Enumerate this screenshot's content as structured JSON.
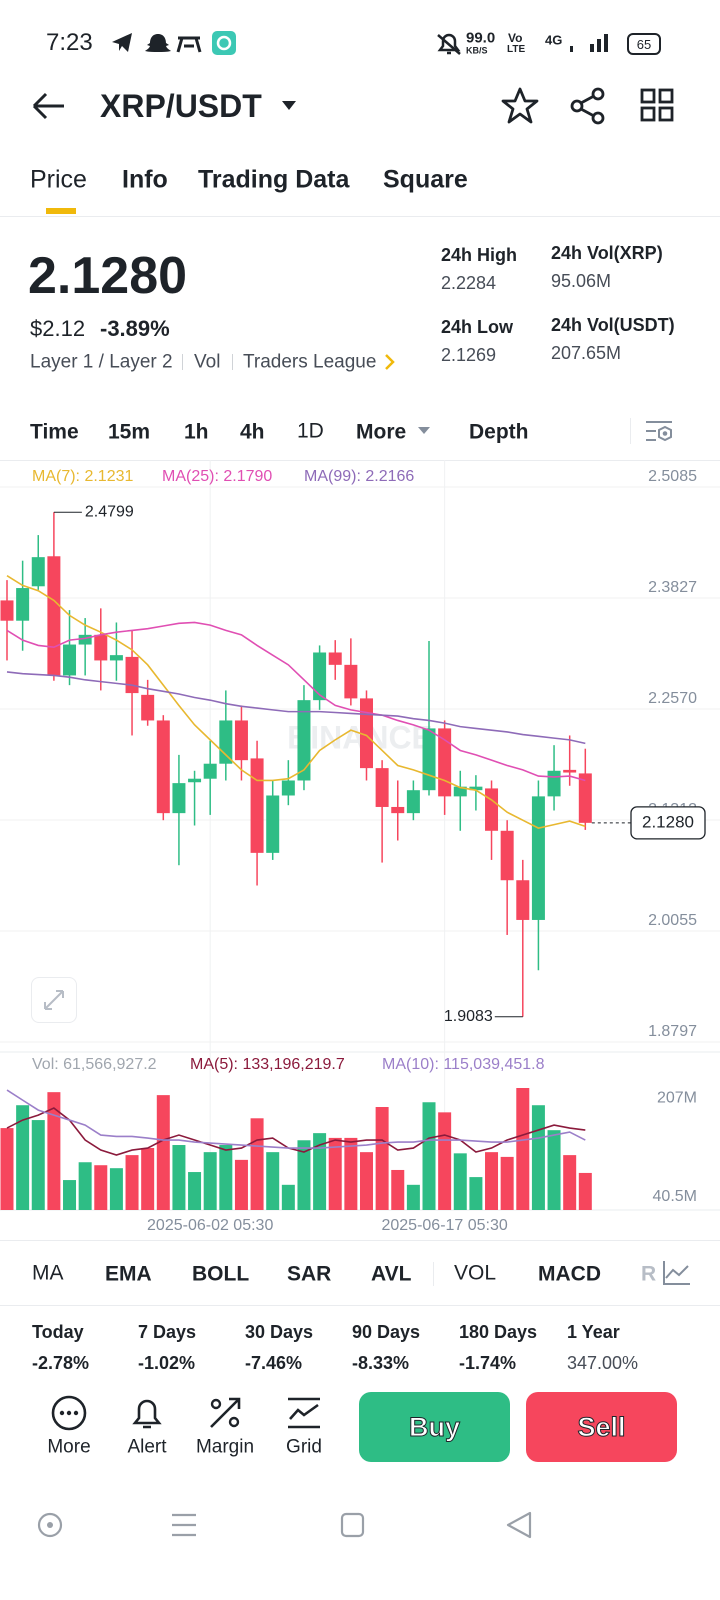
{
  "status_bar": {
    "time": "7:23",
    "speed": "99.0",
    "speed_unit": "KB/S",
    "volte_top": "Vo",
    "volte_bottom": "LTE",
    "network": "4G",
    "battery": "65"
  },
  "header": {
    "pair": "XRP/USDT"
  },
  "tabs": [
    "Price",
    "Info",
    "Trading Data",
    "Square"
  ],
  "price": {
    "last": "2.1280",
    "usd": "$2.12",
    "change": "-3.89%",
    "tags": [
      "Layer 1 / Layer 2",
      "Vol",
      "Traders League"
    ]
  },
  "stats": [
    {
      "label": "24h High",
      "value": "2.2284"
    },
    {
      "label": "24h Vol(XRP)",
      "value": "95.06M"
    },
    {
      "label": "24h Low",
      "value": "2.1269"
    },
    {
      "label": "24h Vol(USDT)",
      "value": "207.65M"
    }
  ],
  "intervals": [
    "Time",
    "15m",
    "1h",
    "4h",
    "1D",
    "More",
    "Depth"
  ],
  "chart_data": {
    "type": "candlestick",
    "watermark": "BINANCE",
    "categories": [
      null,
      null,
      null,
      null,
      null,
      null,
      null,
      null,
      null,
      null,
      null,
      null,
      null,
      "2025-06-02 05:30",
      null,
      null,
      null,
      null,
      null,
      null,
      null,
      null,
      null,
      null,
      null,
      null,
      null,
      null,
      "2025-06-17 05:30",
      null,
      null,
      null,
      null,
      null,
      null,
      null,
      null,
      null
    ],
    "open": [
      2.38,
      2.357,
      2.396,
      2.43,
      2.295,
      2.33,
      2.341,
      2.312,
      2.316,
      2.273,
      2.244,
      2.139,
      2.174,
      2.178,
      2.195,
      2.244,
      2.201,
      2.094,
      2.159,
      2.176,
      2.267,
      2.321,
      2.307,
      2.269,
      2.19,
      2.146,
      2.139,
      2.165,
      2.235,
      2.158,
      2.165,
      2.167,
      2.119,
      2.063,
      2.018,
      2.158,
      2.188,
      2.184
    ],
    "high": [
      2.403,
      2.425,
      2.454,
      2.4799,
      2.369,
      2.36,
      2.371,
      2.355,
      2.346,
      2.29,
      2.25,
      2.205,
      2.187,
      2.221,
      2.278,
      2.261,
      2.221,
      2.176,
      2.199,
      2.284,
      2.329,
      2.335,
      2.337,
      2.278,
      2.199,
      2.176,
      2.176,
      2.334,
      2.244,
      2.187,
      2.182,
      2.176,
      2.131,
      2.086,
      2.176,
      2.216,
      2.227,
      2.212
    ],
    "low": [
      2.312,
      2.323,
      2.392,
      2.289,
      2.284,
      2.295,
      2.278,
      2.289,
      2.227,
      2.238,
      2.131,
      2.08,
      2.125,
      2.137,
      2.176,
      2.176,
      2.057,
      2.086,
      2.148,
      2.165,
      2.256,
      2.29,
      2.261,
      2.176,
      2.083,
      2.108,
      2.131,
      2.159,
      2.137,
      2.119,
      2.142,
      2.086,
      2.001,
      1.9083,
      1.961,
      2.142,
      2.17,
      2.12
    ],
    "close": [
      2.357,
      2.394,
      2.429,
      2.295,
      2.33,
      2.341,
      2.312,
      2.318,
      2.275,
      2.244,
      2.139,
      2.173,
      2.178,
      2.195,
      2.244,
      2.199,
      2.094,
      2.159,
      2.176,
      2.267,
      2.321,
      2.307,
      2.269,
      2.19,
      2.146,
      2.139,
      2.165,
      2.235,
      2.158,
      2.169,
      2.169,
      2.119,
      2.063,
      2.018,
      2.158,
      2.187,
      2.185,
      2.128
    ],
    "up_color": "#2ebd85",
    "down_color": "#f6465d",
    "ylim": [
      1.8684,
      2.5368
    ],
    "yticks": [
      2.5085,
      2.3827,
      {
        "value": 2.257,
        "label": "2.2570"
      },
      2.1312,
      2.0055,
      1.8797
    ],
    "last_price": 2.128,
    "last_price_label": "2.1280",
    "max_label": "2.4799",
    "min_label": "1.9083",
    "series": [
      {
        "name": "MA(7): 2.1231",
        "color": "#e8b830",
        "values": [
          2.408,
          2.397,
          2.391,
          2.38,
          2.363,
          2.352,
          2.344,
          2.335,
          2.324,
          2.307,
          2.284,
          2.261,
          2.239,
          2.222,
          2.205,
          2.188,
          2.176,
          2.176,
          2.178,
          2.188,
          2.21,
          2.222,
          2.233,
          2.227,
          2.21,
          2.193,
          2.188,
          2.182,
          2.176,
          2.168,
          2.165,
          2.154,
          2.14,
          2.131,
          2.122,
          2.126,
          2.13,
          2.124
        ]
      },
      {
        "name": "MA(25): 2.1790",
        "color": "#e04fb3",
        "values": [
          2.346,
          2.335,
          2.329,
          2.327,
          2.335,
          2.337,
          2.341,
          2.344,
          2.346,
          2.348,
          2.351,
          2.354,
          2.355,
          2.352,
          2.346,
          2.341,
          2.329,
          2.318,
          2.307,
          2.29,
          2.273,
          2.261,
          2.256,
          2.253,
          2.25,
          2.244,
          2.239,
          2.233,
          2.222,
          2.21,
          2.205,
          2.199,
          2.193,
          2.188,
          2.181,
          2.18,
          2.181,
          2.176
        ]
      },
      {
        "name": "MA(99): 2.2166",
        "color": "#8e6bb8",
        "values": [
          2.299,
          2.297,
          2.296,
          2.295,
          2.293,
          2.29,
          2.288,
          2.286,
          2.284,
          2.28,
          2.277,
          2.274,
          2.27,
          2.267,
          2.263,
          2.26,
          2.258,
          2.256,
          2.254,
          2.254,
          2.254,
          2.253,
          2.252,
          2.251,
          2.25,
          2.249,
          2.246,
          2.244,
          2.241,
          2.237,
          2.235,
          2.233,
          2.231,
          2.228,
          2.226,
          2.224,
          2.222,
          2.218
        ]
      }
    ],
    "volume": {
      "title": "Vol: 61,566,927.2",
      "values": [
        156500000,
        195000000,
        170000000,
        217000000,
        69000000,
        99000000,
        94000000,
        89000000,
        111000000,
        123000000,
        212000000,
        128000000,
        82500000,
        116000000,
        128000000,
        103000000,
        173000000,
        116000000,
        61000000,
        136000000,
        148000000,
        140000000,
        140000000,
        116000000,
        192000000,
        86000000,
        61000000,
        200000000,
        183000000,
        114000000,
        74000000,
        116000000,
        108000000,
        224000000,
        195000000,
        153000000,
        111000000,
        81000000
      ],
      "ylim": [
        18600000,
        224000000
      ],
      "yticks": [
        {
          "value": 207000000,
          "label": "207M"
        },
        {
          "value": 40500000,
          "label": "40.5M"
        }
      ],
      "series": [
        {
          "name": "MA(5): 133,196,219.7",
          "color": "#8b1a3c",
          "values": [
            156500000,
            170000000,
            178400000,
            190200000,
            170000000,
            136400000,
            119500000,
            111100000,
            119500000,
            122900000,
            136400000,
            144800000,
            136400000,
            128000000,
            119500000,
            122900000,
            136400000,
            139700000,
            122900000,
            116200000,
            128000000,
            136400000,
            133000000,
            136400000,
            136400000,
            119500000,
            122900000,
            139700000,
            144800000,
            136400000,
            116200000,
            122900000,
            136400000,
            144800000,
            153200000,
            161600000,
            156500000,
            153200000
          ]
        },
        {
          "name": "MA(10): 115,039,451.8",
          "color": "#9b7fc9",
          "values": [
            220500000,
            203600000,
            186800000,
            178400000,
            170000000,
            161600000,
            144800000,
            142400000,
            142400000,
            139700000,
            136400000,
            136400000,
            133000000,
            131300000,
            129600000,
            128000000,
            126300000,
            124600000,
            122900000,
            122900000,
            122900000,
            124600000,
            126300000,
            128000000,
            131300000,
            133000000,
            133000000,
            136400000,
            136400000,
            136400000,
            134700000,
            133000000,
            133000000,
            136400000,
            139700000,
            144800000,
            149800000,
            136400000
          ]
        }
      ]
    }
  },
  "indicators": [
    "MA",
    "EMA",
    "BOLL",
    "SAR",
    "AVL",
    "VOL",
    "MACD",
    "R"
  ],
  "performance": [
    {
      "label": "Today",
      "value": "-2.78%"
    },
    {
      "label": "7 Days",
      "value": "-1.02%"
    },
    {
      "label": "30 Days",
      "value": "-7.46%"
    },
    {
      "label": "90 Days",
      "value": "-8.33%"
    },
    {
      "label": "180 Days",
      "value": "-1.74%"
    },
    {
      "label": "1 Year",
      "value": "347.00%"
    }
  ],
  "actions": [
    "More",
    "Alert",
    "Margin",
    "Grid"
  ],
  "buttons": [
    "Buy",
    "Sell"
  ]
}
